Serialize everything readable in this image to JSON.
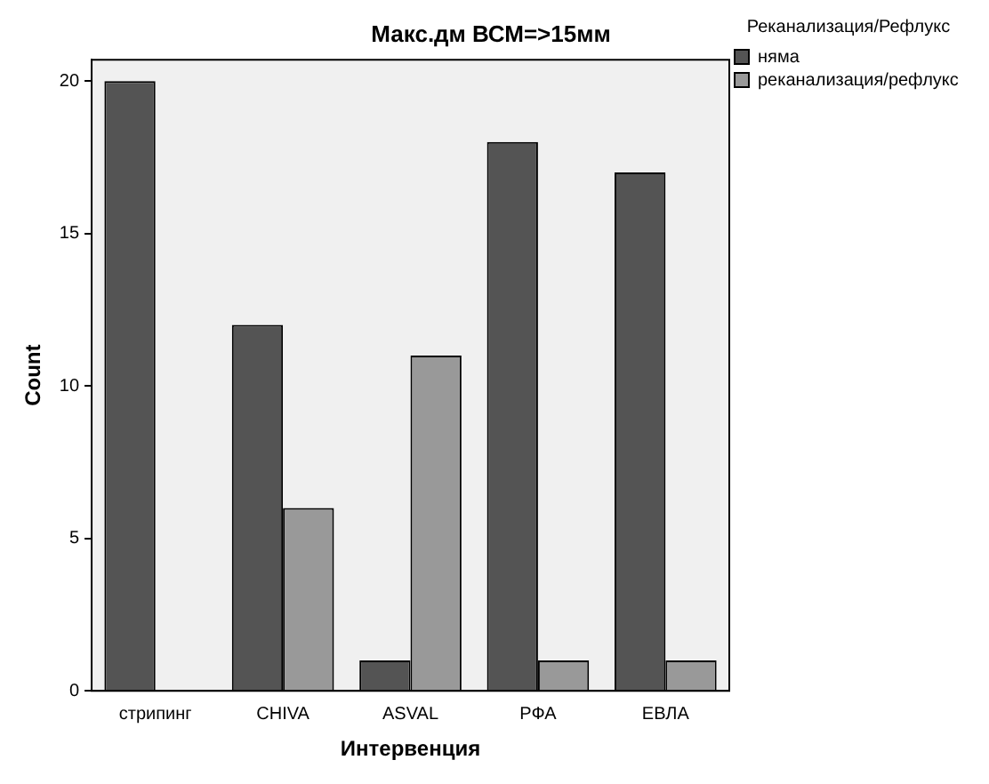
{
  "chart_data": {
    "type": "bar",
    "title": "Макс.дм ВСМ=>15мм",
    "xlabel": "Интервенция",
    "ylabel": "Count",
    "legend_title": "Реканализация/Рефлукс",
    "categories": [
      "стрипинг",
      "CHIVA",
      "ASVAL",
      "РФА",
      "ЕВЛА"
    ],
    "series": [
      {
        "name": "няма",
        "color": "#545454",
        "values": [
          20,
          12,
          1,
          18,
          17
        ]
      },
      {
        "name": "реканализация/рефлукс",
        "color": "#999999",
        "values": [
          0,
          6,
          11,
          1,
          1
        ]
      }
    ],
    "ylim": [
      0,
      20.7
    ],
    "yticks": [
      0,
      5,
      10,
      15,
      20
    ],
    "grid": false,
    "legend": "top right"
  }
}
